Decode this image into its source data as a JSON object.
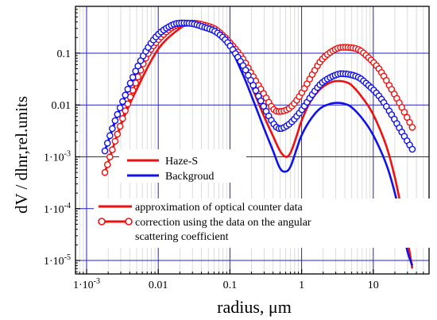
{
  "chart_data": {
    "type": "line",
    "xlabel": "radius, μm",
    "ylabel": "dV / dlnr,rel.units",
    "x_scale": "log",
    "y_scale": "log",
    "xlim": [
      0.0007,
      60
    ],
    "ylim": [
      5.5e-06,
      0.8
    ],
    "grid": true,
    "x_ticks": [
      {
        "value": 0.001,
        "label": "1·10"
      },
      {
        "value": 0.01,
        "label": "0.01"
      },
      {
        "value": 0.1,
        "label": "0.1"
      },
      {
        "value": 1,
        "label": "1"
      },
      {
        "value": 10,
        "label": "10"
      }
    ],
    "y_ticks": [
      {
        "value": 1e-05,
        "label": "1·10"
      },
      {
        "value": 0.0001,
        "label": "1·10"
      },
      {
        "value": 0.001,
        "label": "1·10"
      },
      {
        "value": 0.01,
        "label": "0.01"
      },
      {
        "value": 0.1,
        "label": "0.1"
      }
    ],
    "tick_exponents": {
      "x_0.001": "-3",
      "y_0.00001": "-5",
      "y_0.0001": "-4",
      "y_0.001": "-3"
    },
    "series": [
      {
        "name": "Haze-S",
        "color": "#ee1111",
        "style": "approximation",
        "x": [
          0.0018,
          0.003,
          0.005,
          0.01,
          0.02,
          0.03,
          0.045,
          0.07,
          0.1,
          0.15,
          0.2,
          0.3,
          0.4,
          0.5,
          0.6,
          0.7,
          0.85,
          1,
          1.3,
          1.8,
          2.5,
          3.2,
          4,
          5,
          7,
          10,
          15,
          20,
          25,
          30,
          35
        ],
        "y": [
          0.0005,
          0.004,
          0.02,
          0.12,
          0.3,
          0.38,
          0.37,
          0.26,
          0.15,
          0.055,
          0.023,
          0.006,
          0.0025,
          0.0013,
          0.001,
          0.0012,
          0.0025,
          0.005,
          0.011,
          0.02,
          0.027,
          0.029,
          0.028,
          0.024,
          0.014,
          0.0065,
          0.0017,
          0.0004,
          9e-05,
          2.5e-05,
          7e-06
        ]
      },
      {
        "name": "Backgroud",
        "color": "#1111ee",
        "style": "approximation",
        "x": [
          0.0018,
          0.003,
          0.005,
          0.01,
          0.02,
          0.03,
          0.045,
          0.07,
          0.1,
          0.15,
          0.2,
          0.3,
          0.4,
          0.5,
          0.6,
          0.7,
          0.85,
          1,
          1.3,
          1.8,
          2.5,
          3.2,
          4,
          5,
          7,
          10,
          15,
          20,
          25,
          30,
          35
        ],
        "y": [
          0.0013,
          0.009,
          0.04,
          0.18,
          0.33,
          0.37,
          0.34,
          0.22,
          0.13,
          0.04,
          0.015,
          0.0035,
          0.0013,
          0.0006,
          0.00052,
          0.00065,
          0.0014,
          0.0026,
          0.005,
          0.0085,
          0.0105,
          0.011,
          0.0105,
          0.009,
          0.0055,
          0.0026,
          0.00075,
          0.0002,
          5e-05,
          1.5e-05,
          8e-06
        ]
      },
      {
        "name": "Haze-S",
        "color": "#ee1111",
        "style": "correction",
        "x": [
          0.0018,
          0.0025,
          0.0035,
          0.005,
          0.007,
          0.01,
          0.015,
          0.02,
          0.03,
          0.04,
          0.06,
          0.08,
          0.1,
          0.15,
          0.2,
          0.3,
          0.4,
          0.5,
          0.7,
          1,
          1.5,
          2,
          3,
          4,
          6,
          8,
          12,
          18,
          25,
          35
        ],
        "y": [
          0.0005,
          0.002,
          0.008,
          0.03,
          0.09,
          0.18,
          0.3,
          0.36,
          0.38,
          0.36,
          0.3,
          0.22,
          0.16,
          0.08,
          0.04,
          0.016,
          0.0085,
          0.0075,
          0.009,
          0.017,
          0.045,
          0.08,
          0.12,
          0.13,
          0.12,
          0.09,
          0.05,
          0.02,
          0.009,
          0.0037
        ]
      },
      {
        "name": "Backgroud",
        "color": "#1111ee",
        "style": "correction",
        "x": [
          0.0018,
          0.0025,
          0.0035,
          0.005,
          0.007,
          0.01,
          0.015,
          0.02,
          0.03,
          0.04,
          0.06,
          0.08,
          0.1,
          0.15,
          0.2,
          0.3,
          0.4,
          0.5,
          0.7,
          1,
          1.5,
          2,
          3,
          4,
          6,
          8,
          12,
          18,
          25,
          35
        ],
        "y": [
          0.0013,
          0.005,
          0.016,
          0.05,
          0.12,
          0.23,
          0.34,
          0.38,
          0.37,
          0.33,
          0.27,
          0.2,
          0.14,
          0.06,
          0.028,
          0.009,
          0.0045,
          0.0035,
          0.0045,
          0.008,
          0.018,
          0.028,
          0.038,
          0.04,
          0.035,
          0.026,
          0.015,
          0.0065,
          0.003,
          0.0014
        ]
      }
    ],
    "legend": [
      {
        "label": "Haze-S",
        "color": "#ee1111",
        "kind": "line"
      },
      {
        "label": "Backgroud",
        "color": "#1111ee",
        "kind": "line"
      }
    ],
    "style_legend": [
      {
        "label_lines": [
          "approximation of optical counter data"
        ],
        "kind": "line"
      },
      {
        "label_lines": [
          "correction using the data on the angular",
          "scattering coefficient"
        ],
        "kind": "line-marker"
      }
    ]
  }
}
